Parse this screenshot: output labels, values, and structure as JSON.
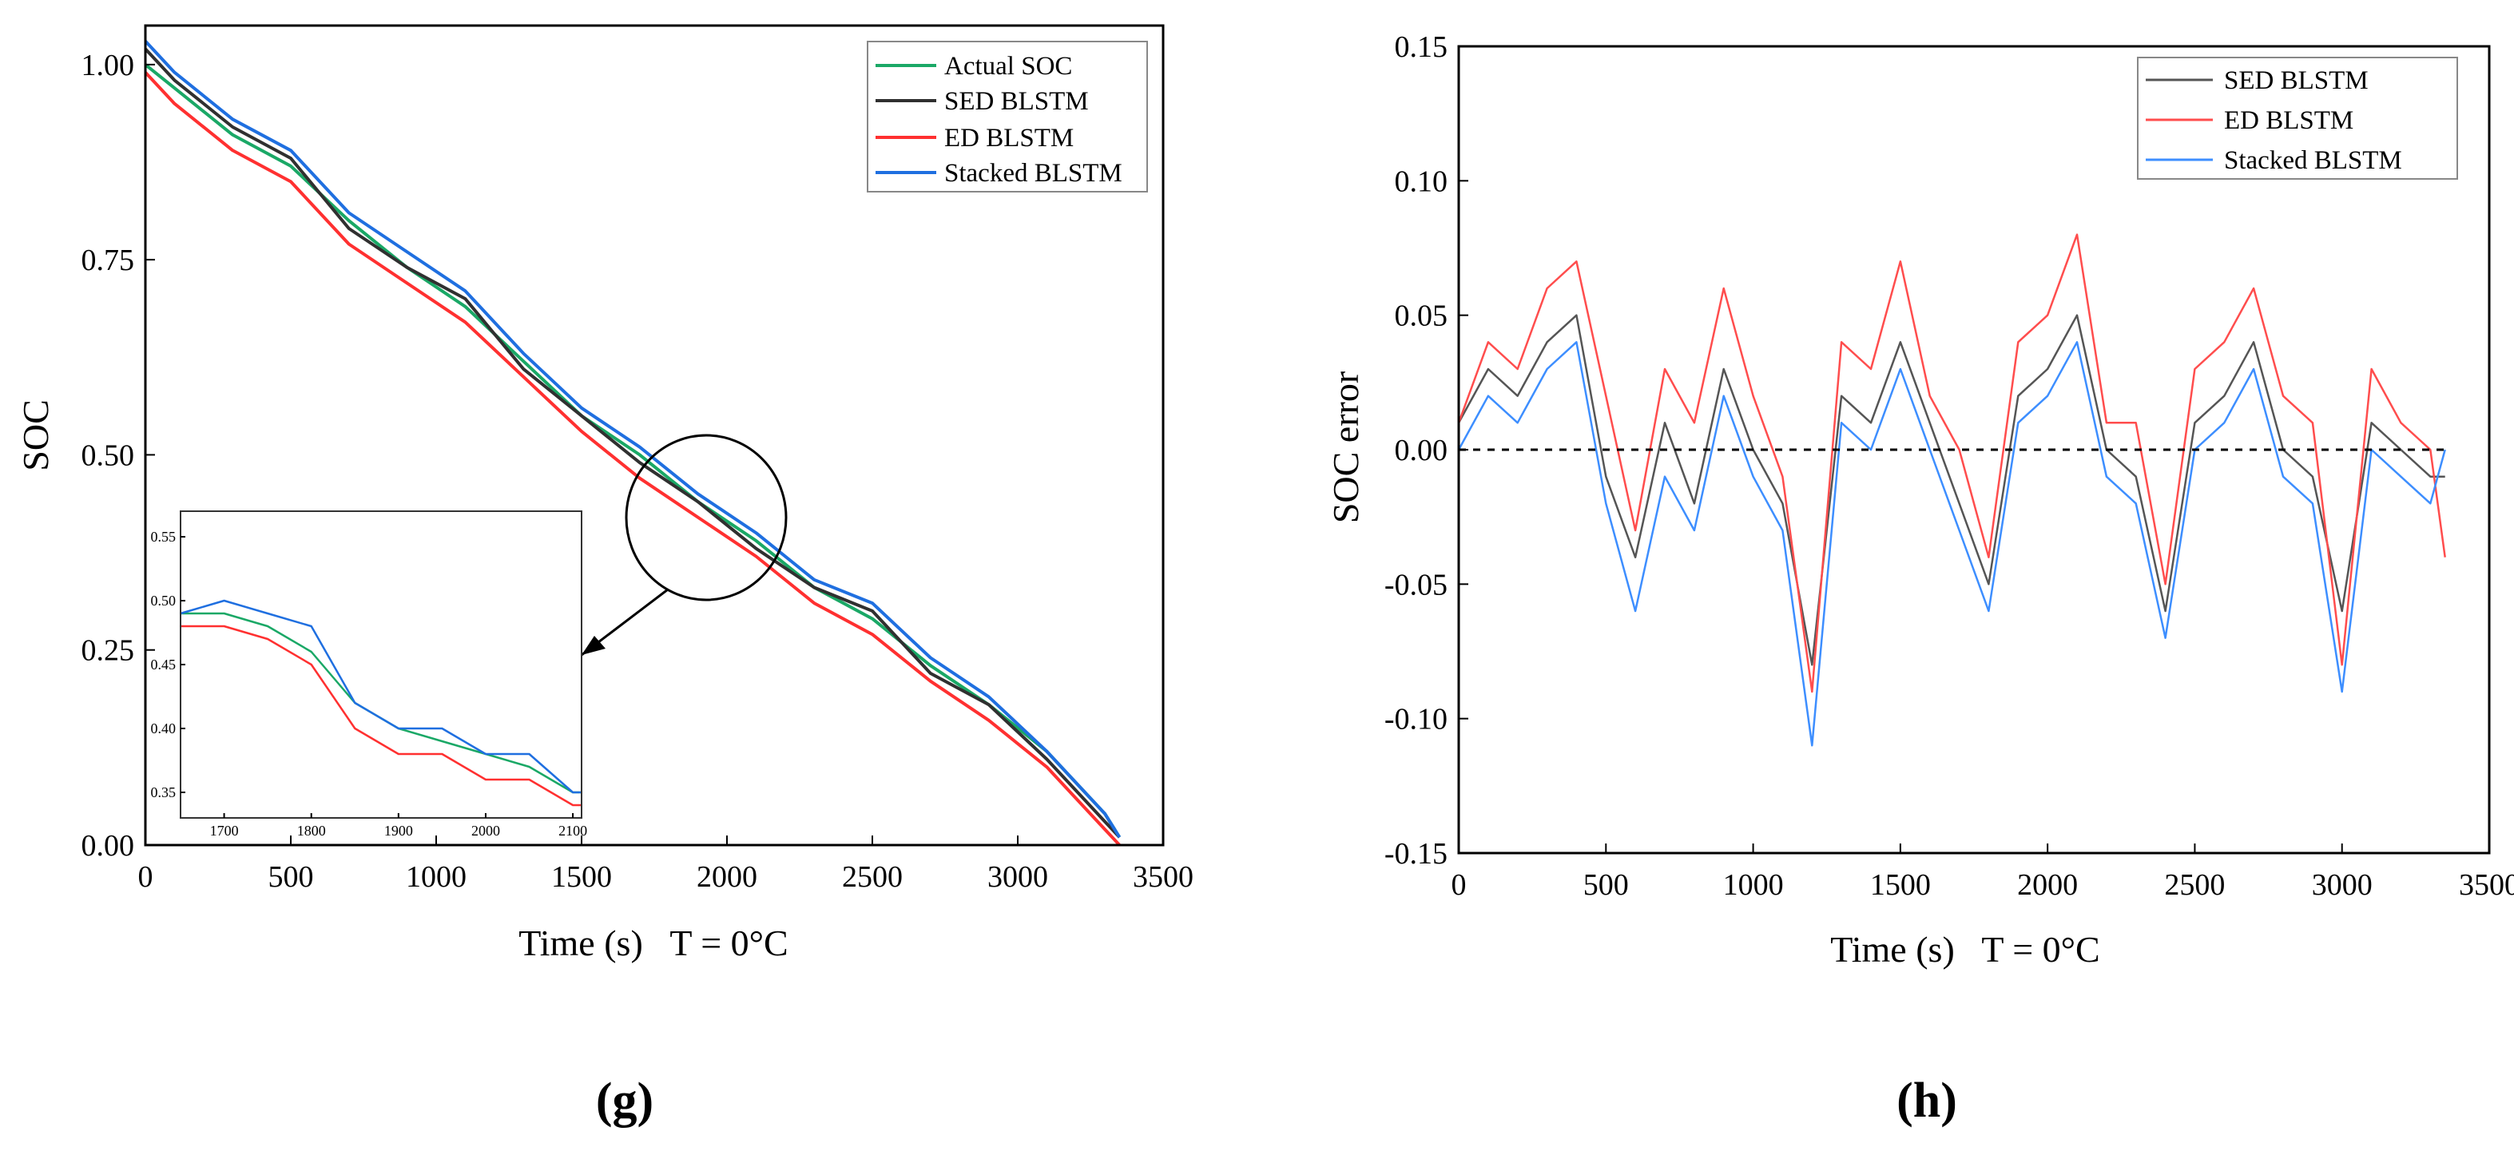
{
  "panels": [
    {
      "id": "g",
      "label": "(g)"
    },
    {
      "id": "h",
      "label": "(h)"
    }
  ],
  "chart_data": [
    {
      "panel": "g",
      "type": "line",
      "xlabel": "Time (s)   T = 0°C",
      "ylabel": "SOC",
      "xlim": [
        0,
        3500
      ],
      "ylim": [
        0,
        1.05
      ],
      "xticks": [
        0,
        500,
        1000,
        1500,
        2000,
        2500,
        3000,
        3500
      ],
      "yticks": [
        0.0,
        0.25,
        0.5,
        0.75,
        1.0
      ],
      "ytick_labels": [
        "0.00",
        "0.25",
        "0.50",
        "0.75",
        "1.00"
      ],
      "legend_position": "top-right",
      "series": [
        {
          "name": "Actual SOC",
          "color": "#1aa866",
          "x": [
            0,
            100,
            300,
            500,
            700,
            900,
            1100,
            1300,
            1500,
            1700,
            1900,
            2100,
            2300,
            2500,
            2700,
            2900,
            3100,
            3300,
            3350
          ],
          "y": [
            1.0,
            0.97,
            0.91,
            0.87,
            0.8,
            0.74,
            0.69,
            0.62,
            0.55,
            0.5,
            0.44,
            0.39,
            0.33,
            0.29,
            0.23,
            0.18,
            0.12,
            0.04,
            0.01
          ]
        },
        {
          "name": "SED BLSTM",
          "color": "#303030",
          "x": [
            0,
            100,
            300,
            500,
            700,
            900,
            1100,
            1300,
            1500,
            1700,
            1900,
            2100,
            2300,
            2500,
            2700,
            2900,
            3100,
            3300,
            3350
          ],
          "y": [
            1.02,
            0.98,
            0.92,
            0.88,
            0.79,
            0.74,
            0.7,
            0.61,
            0.55,
            0.49,
            0.44,
            0.38,
            0.33,
            0.3,
            0.22,
            0.18,
            0.11,
            0.03,
            0.01
          ]
        },
        {
          "name": "ED BLSTM",
          "color": "#ff3030",
          "x": [
            0,
            100,
            300,
            500,
            700,
            900,
            1100,
            1300,
            1500,
            1700,
            1900,
            2100,
            2300,
            2500,
            2700,
            2900,
            3100,
            3300,
            3350
          ],
          "y": [
            0.99,
            0.95,
            0.89,
            0.85,
            0.77,
            0.72,
            0.67,
            0.6,
            0.53,
            0.47,
            0.42,
            0.37,
            0.31,
            0.27,
            0.21,
            0.16,
            0.1,
            0.02,
            0.0
          ]
        },
        {
          "name": "Stacked BLSTM",
          "color": "#1f6fe0",
          "x": [
            0,
            100,
            300,
            500,
            700,
            900,
            1100,
            1300,
            1500,
            1700,
            1900,
            2100,
            2300,
            2500,
            2700,
            2900,
            3100,
            3300,
            3350
          ],
          "y": [
            1.03,
            0.99,
            0.93,
            0.89,
            0.81,
            0.76,
            0.71,
            0.63,
            0.56,
            0.51,
            0.45,
            0.4,
            0.34,
            0.31,
            0.24,
            0.19,
            0.12,
            0.04,
            0.01
          ]
        }
      ],
      "inset": {
        "xlim": [
          1650,
          2110
        ],
        "ylim": [
          0.33,
          0.57
        ],
        "xticks": [
          1700,
          1800,
          1900,
          2000,
          2100
        ],
        "yticks": [
          0.35,
          0.4,
          0.45,
          0.5,
          0.55
        ],
        "ytick_labels": [
          "0.35",
          "0.40",
          "0.45",
          "0.50",
          "0.55"
        ],
        "series": [
          {
            "name": "Actual SOC",
            "color": "#1aa866",
            "x": [
              1650,
              1700,
              1750,
              1800,
              1850,
              1900,
              1950,
              2000,
              2050,
              2100,
              2110
            ],
            "y": [
              0.49,
              0.49,
              0.48,
              0.46,
              0.42,
              0.4,
              0.39,
              0.38,
              0.37,
              0.35,
              0.35
            ]
          },
          {
            "name": "ED BLSTM",
            "color": "#ff3030",
            "x": [
              1650,
              1700,
              1750,
              1800,
              1850,
              1900,
              1950,
              2000,
              2050,
              2100,
              2110
            ],
            "y": [
              0.48,
              0.48,
              0.47,
              0.45,
              0.4,
              0.38,
              0.38,
              0.36,
              0.36,
              0.34,
              0.34
            ]
          },
          {
            "name": "Stacked BLSTM",
            "color": "#1f6fe0",
            "x": [
              1650,
              1700,
              1750,
              1800,
              1850,
              1900,
              1950,
              2000,
              2050,
              2100,
              2110
            ],
            "y": [
              0.49,
              0.5,
              0.49,
              0.48,
              0.42,
              0.4,
              0.4,
              0.38,
              0.38,
              0.35,
              0.35
            ]
          }
        ]
      }
    },
    {
      "panel": "h",
      "type": "line",
      "xlabel": "Time (s)   T = 0°C",
      "ylabel": "SOC error",
      "xlim": [
        0,
        3500
      ],
      "ylim": [
        -0.15,
        0.15
      ],
      "xticks": [
        0,
        500,
        1000,
        1500,
        2000,
        2500,
        3000,
        3500
      ],
      "yticks": [
        -0.15,
        -0.1,
        -0.05,
        0.0,
        0.05,
        0.1,
        0.15
      ],
      "ytick_labels": [
        "-0.15",
        "-0.10",
        "-0.05",
        "0.00",
        "0.05",
        "0.10",
        "0.15"
      ],
      "reference_line": 0.0,
      "legend_position": "top-right",
      "series": [
        {
          "name": "SED BLSTM",
          "color": "#555555",
          "x": [
            0,
            100,
            200,
            300,
            400,
            500,
            600,
            700,
            800,
            900,
            1000,
            1100,
            1200,
            1300,
            1400,
            1500,
            1600,
            1700,
            1800,
            1900,
            2000,
            2100,
            2200,
            2300,
            2400,
            2500,
            2600,
            2700,
            2800,
            2900,
            3000,
            3100,
            3200,
            3300,
            3350
          ],
          "y": [
            0.01,
            0.03,
            0.02,
            0.04,
            0.05,
            -0.01,
            -0.04,
            0.01,
            -0.02,
            0.03,
            0.0,
            -0.02,
            -0.08,
            0.02,
            0.01,
            0.04,
            0.01,
            -0.02,
            -0.05,
            0.02,
            0.03,
            0.05,
            0.0,
            -0.01,
            -0.06,
            0.01,
            0.02,
            0.04,
            0.0,
            -0.01,
            -0.06,
            0.01,
            0.0,
            -0.01,
            -0.01
          ]
        },
        {
          "name": "ED BLSTM",
          "color": "#ff4d4d",
          "x": [
            0,
            100,
            200,
            300,
            400,
            500,
            600,
            700,
            800,
            900,
            1000,
            1100,
            1200,
            1300,
            1400,
            1500,
            1600,
            1700,
            1800,
            1900,
            2000,
            2100,
            2200,
            2300,
            2400,
            2500,
            2600,
            2700,
            2800,
            2900,
            3000,
            3100,
            3200,
            3300,
            3350
          ],
          "y": [
            0.01,
            0.04,
            0.03,
            0.06,
            0.07,
            0.02,
            -0.03,
            0.03,
            0.01,
            0.06,
            0.02,
            -0.01,
            -0.09,
            0.04,
            0.03,
            0.07,
            0.02,
            0.0,
            -0.04,
            0.04,
            0.05,
            0.08,
            0.01,
            0.01,
            -0.05,
            0.03,
            0.04,
            0.06,
            0.02,
            0.01,
            -0.08,
            0.03,
            0.01,
            0.0,
            -0.04
          ]
        },
        {
          "name": "Stacked BLSTM",
          "color": "#3d8eff",
          "x": [
            0,
            100,
            200,
            300,
            400,
            500,
            600,
            700,
            800,
            900,
            1000,
            1100,
            1200,
            1300,
            1400,
            1500,
            1600,
            1700,
            1800,
            1900,
            2000,
            2100,
            2200,
            2300,
            2400,
            2500,
            2600,
            2700,
            2800,
            2900,
            3000,
            3100,
            3200,
            3300,
            3350
          ],
          "y": [
            0.0,
            0.02,
            0.01,
            0.03,
            0.04,
            -0.02,
            -0.06,
            -0.01,
            -0.03,
            0.02,
            -0.01,
            -0.03,
            -0.11,
            0.01,
            0.0,
            0.03,
            0.0,
            -0.03,
            -0.06,
            0.01,
            0.02,
            0.04,
            -0.01,
            -0.02,
            -0.07,
            0.0,
            0.01,
            0.03,
            -0.01,
            -0.02,
            -0.09,
            0.0,
            -0.01,
            -0.02,
            0.0
          ]
        }
      ]
    }
  ]
}
